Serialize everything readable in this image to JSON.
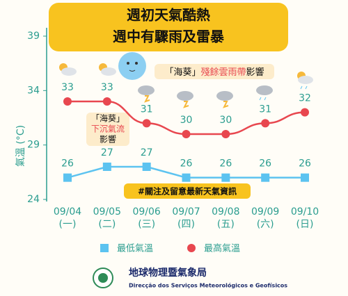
{
  "chart_data": {
    "type": "line",
    "title": [
      "週初天氣酷熱",
      "週中有驟雨及雷暴"
    ],
    "y_label": "氣溫 (°C)",
    "categories": [
      "09/04",
      "09/05",
      "09/06",
      "09/07",
      "09/08",
      "09/09",
      "09/10"
    ],
    "weekdays": [
      "(一)",
      "(二)",
      "(三)",
      "(四)",
      "(五)",
      "(六)",
      "(日)"
    ],
    "series": [
      {
        "name": "最低氣溫",
        "color": "#5cc3f0",
        "marker": "square",
        "values": [
          26,
          27,
          27,
          26,
          26,
          26,
          26
        ]
      },
      {
        "name": "最高氣溫",
        "color": "#e8474f",
        "marker": "circle",
        "values": [
          33,
          33,
          31,
          30,
          30,
          31,
          32
        ]
      }
    ],
    "ylim": [
      24,
      39
    ],
    "yticks": [
      24,
      29,
      34,
      39
    ],
    "annotations": {
      "residual": [
        "「海葵」",
        "殘餘雲雨帶",
        "影響"
      ],
      "subsidence": [
        "「海葵」",
        "下沉氣流",
        "影響"
      ],
      "notice": "#關注及留意最新天氣資訊"
    },
    "footer": {
      "name": "地球物理暨氣象局",
      "name_pt": "Direcção dos Serviços Meteorológicos e Geofísicos"
    }
  }
}
